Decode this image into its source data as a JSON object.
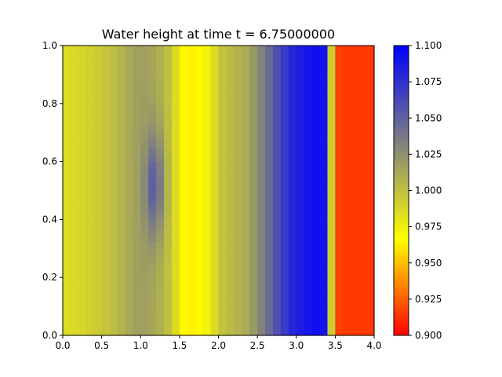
{
  "chart_data": {
    "type": "heatmap",
    "title": "Water height at time t =      6.75000000",
    "xlim": [
      0.0,
      4.0
    ],
    "ylim": [
      0.0,
      1.0
    ],
    "x_ticks": [
      "0.0",
      "0.5",
      "1.0",
      "1.5",
      "2.0",
      "2.5",
      "3.0",
      "3.5",
      "4.0"
    ],
    "y_ticks": [
      "0.0",
      "0.2",
      "0.4",
      "0.6",
      "0.8",
      "1.0"
    ],
    "colorbar": {
      "range": [
        0.9,
        1.1
      ],
      "ticks": [
        "0.900",
        "0.925",
        "0.950",
        "0.975",
        "1.000",
        "1.025",
        "1.050",
        "1.075",
        "1.100"
      ],
      "colors": [
        "#ff0000",
        "#ffff00",
        "#808080",
        "#0000ff"
      ]
    },
    "profile": {
      "x": [
        0.0,
        0.25,
        0.5,
        0.7,
        0.85,
        1.0,
        1.2,
        1.35,
        1.45,
        1.55,
        1.7,
        1.8,
        1.95,
        2.05,
        2.2,
        2.35,
        2.5,
        2.65,
        2.8,
        2.95,
        3.1,
        3.25,
        3.35,
        3.42,
        3.44,
        3.47,
        3.5,
        3.52,
        3.6,
        4.0
      ],
      "height": [
        0.985,
        0.988,
        0.995,
        1.003,
        1.012,
        1.018,
        1.012,
        1.0,
        0.985,
        0.965,
        0.962,
        0.968,
        0.985,
        0.998,
        1.005,
        1.01,
        1.025,
        1.045,
        1.065,
        1.08,
        1.088,
        1.092,
        1.09,
        1.088,
        0.99,
        1.0,
        0.945,
        0.918,
        0.915,
        0.915
      ]
    },
    "bump": {
      "x_center": 1.18,
      "y_center": 0.52,
      "amplitude": 0.04
    }
  }
}
